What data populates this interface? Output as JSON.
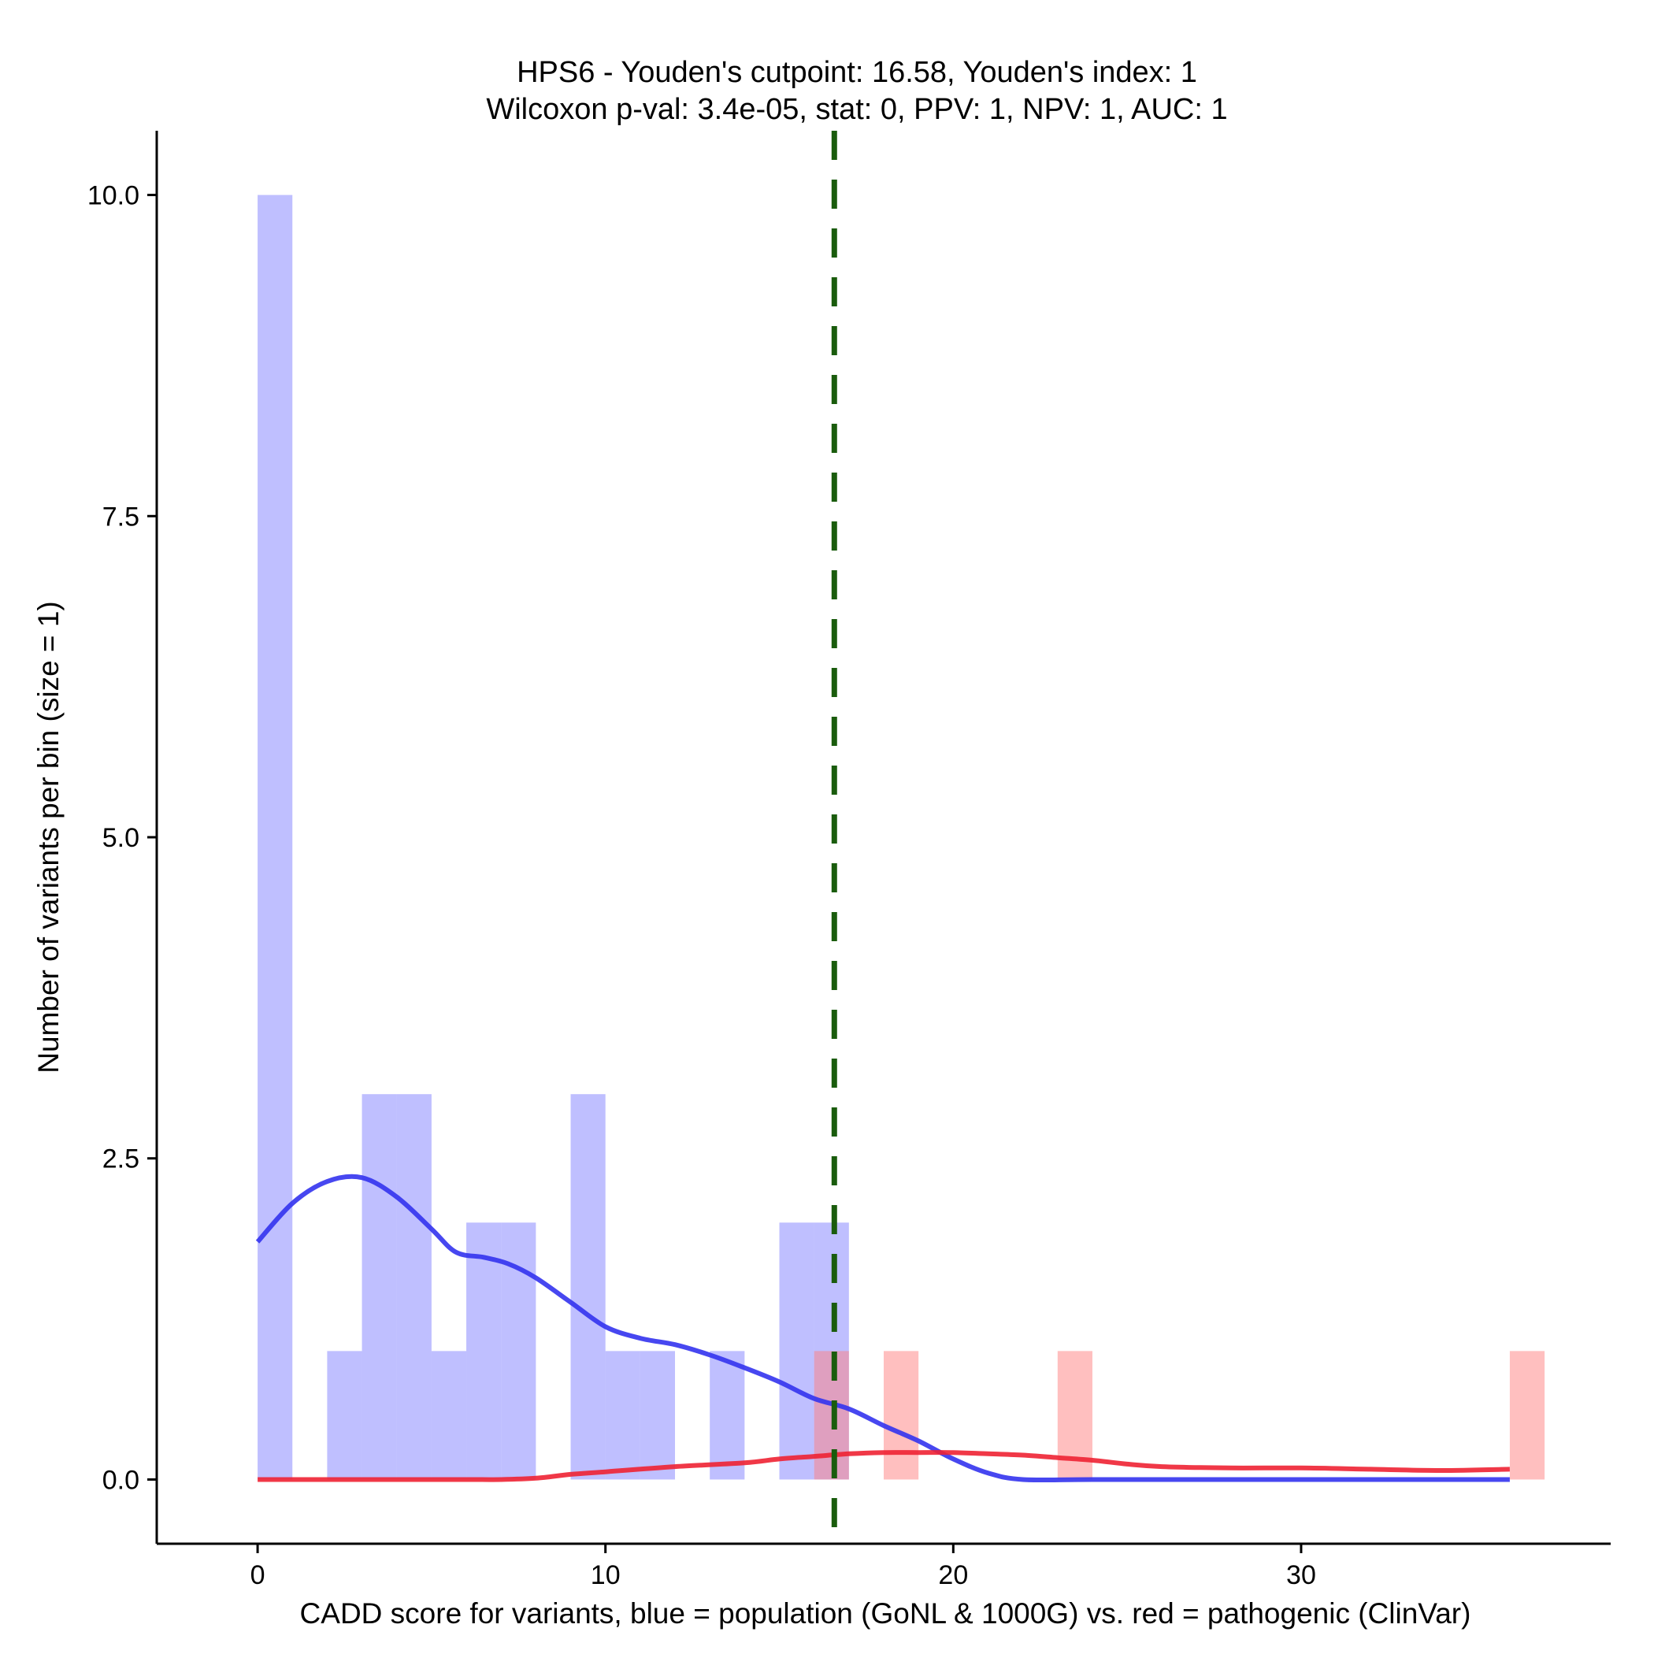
{
  "chart_data": {
    "type": "bar",
    "title": "HPS6 - Youden's cutpoint: 16.58, Youden's index: 1",
    "subtitle": "Wilcoxon p-val: 3.4e-05, stat: 0, PPV: 1, NPV: 1, AUC: 1",
    "xlabel": "CADD score for variants, blue = population (GoNL & 1000G) vs. red = pathogenic (ClinVar)",
    "ylabel": "Number of variants per bin (size = 1)",
    "xlim": [
      -2.9,
      38.9
    ],
    "ylim": [
      -0.5,
      10.5
    ],
    "x_ticks": [
      0,
      10,
      20,
      30
    ],
    "x_tick_labels": [
      "0",
      "10",
      "20",
      "30"
    ],
    "y_ticks": [
      0,
      2.5,
      5,
      7.5,
      10
    ],
    "y_tick_labels": [
      "0.0",
      "2.5",
      "5.0",
      "7.5",
      "10.0"
    ],
    "bin_width": 1,
    "series": [
      {
        "name": "population (GoNL & 1000G)",
        "color": "#8080ff",
        "opacity": 0.5,
        "bins": [
          {
            "start": 0,
            "count": 10
          },
          {
            "start": 2,
            "count": 1
          },
          {
            "start": 3,
            "count": 3
          },
          {
            "start": 4,
            "count": 3
          },
          {
            "start": 5,
            "count": 1
          },
          {
            "start": 6,
            "count": 2
          },
          {
            "start": 7,
            "count": 2
          },
          {
            "start": 9,
            "count": 3
          },
          {
            "start": 10,
            "count": 1
          },
          {
            "start": 11,
            "count": 1
          },
          {
            "start": 13,
            "count": 1
          },
          {
            "start": 15,
            "count": 2
          },
          {
            "start": 16,
            "count": 2
          }
        ],
        "density": {
          "color": "#3333ee",
          "x": [
            0,
            1,
            2,
            3,
            4,
            5,
            5.7,
            6.5,
            7.2,
            8,
            9,
            10,
            11,
            12,
            13,
            14,
            15,
            16,
            17,
            18,
            19,
            20,
            21,
            22,
            24,
            28,
            32,
            36
          ],
          "y": [
            1.85,
            2.15,
            2.32,
            2.35,
            2.2,
            1.95,
            1.77,
            1.73,
            1.68,
            1.57,
            1.38,
            1.19,
            1.1,
            1.05,
            0.97,
            0.87,
            0.76,
            0.63,
            0.55,
            0.42,
            0.3,
            0.16,
            0.05,
            0.0,
            0.0,
            0.0,
            0.0,
            0.0
          ]
        }
      },
      {
        "name": "pathogenic (ClinVar)",
        "color": "#ff8080",
        "opacity": 0.5,
        "bins": [
          {
            "start": 16,
            "count": 1
          },
          {
            "start": 18,
            "count": 1
          },
          {
            "start": 23,
            "count": 1
          },
          {
            "start": 36,
            "count": 1
          }
        ],
        "density": {
          "color": "#ee2233",
          "x": [
            0,
            2,
            4,
            6,
            7,
            8,
            9,
            10,
            12,
            14,
            15,
            16,
            17,
            18,
            19,
            20,
            21,
            22,
            23,
            24,
            25,
            26,
            28,
            30,
            32,
            34,
            36
          ],
          "y": [
            0.0,
            0.0,
            0.0,
            0.0,
            0.0,
            0.01,
            0.04,
            0.06,
            0.1,
            0.13,
            0.16,
            0.18,
            0.2,
            0.21,
            0.21,
            0.21,
            0.2,
            0.19,
            0.17,
            0.15,
            0.12,
            0.1,
            0.09,
            0.09,
            0.08,
            0.07,
            0.08
          ]
        }
      }
    ],
    "cutpoint": {
      "x": 16.58,
      "color": "#1a5c0d",
      "style": "dashed"
    }
  }
}
